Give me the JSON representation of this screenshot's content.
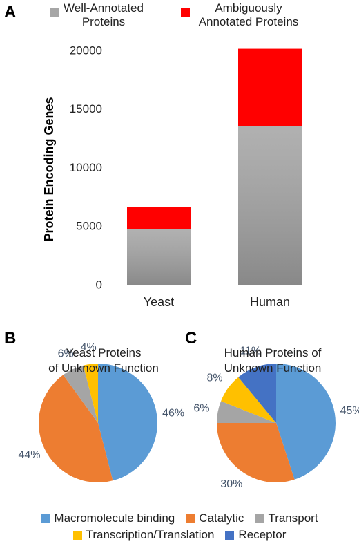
{
  "panels": [
    "A",
    "B",
    "C"
  ],
  "legend": [
    {
      "name": "Macromolecule binding",
      "color": "#5b9bd5"
    },
    {
      "name": "Catalytic",
      "color": "#ed7d31"
    },
    {
      "name": "Transport",
      "color": "#a5a5a5"
    },
    {
      "name": "Transcription/Translation",
      "color": "#ffc000"
    },
    {
      "name": "Receptor",
      "color": "#4472c4"
    }
  ],
  "chart_data": [
    {
      "type": "bar",
      "stacked": true,
      "y_label": "Protein Encoding Genes",
      "categories": [
        "Yeast",
        "Human"
      ],
      "series": [
        {
          "name": "Well-Annotated\nProteins",
          "color": "#a6a6a6",
          "values": [
            4800,
            13600
          ]
        },
        {
          "name": "Ambiguously\nAnnotated Proteins",
          "color": "#ff0000",
          "values": [
            1900,
            6600
          ]
        }
      ],
      "ylim": [
        0,
        21000
      ],
      "yticks": [
        0,
        5000,
        10000,
        15000,
        20000
      ],
      "grid": false
    },
    {
      "type": "pie",
      "title": "Yeast Proteins\nof Unknown Function",
      "values": [
        46,
        44,
        6,
        4
      ],
      "value_labels": [
        "46%",
        "44%",
        "6%",
        "4%"
      ],
      "colors": [
        "#5b9bd5",
        "#ed7d31",
        "#a5a5a5",
        "#ffc000"
      ]
    },
    {
      "type": "pie",
      "title": "Human Proteins of\nUnknown Function",
      "values": [
        45,
        30,
        6,
        8,
        11
      ],
      "value_labels": [
        "45%",
        "30%",
        "6%",
        "8%",
        "11%"
      ],
      "colors": [
        "#5b9bd5",
        "#ed7d31",
        "#a5a5a5",
        "#ffc000",
        "#4472c4"
      ]
    }
  ]
}
